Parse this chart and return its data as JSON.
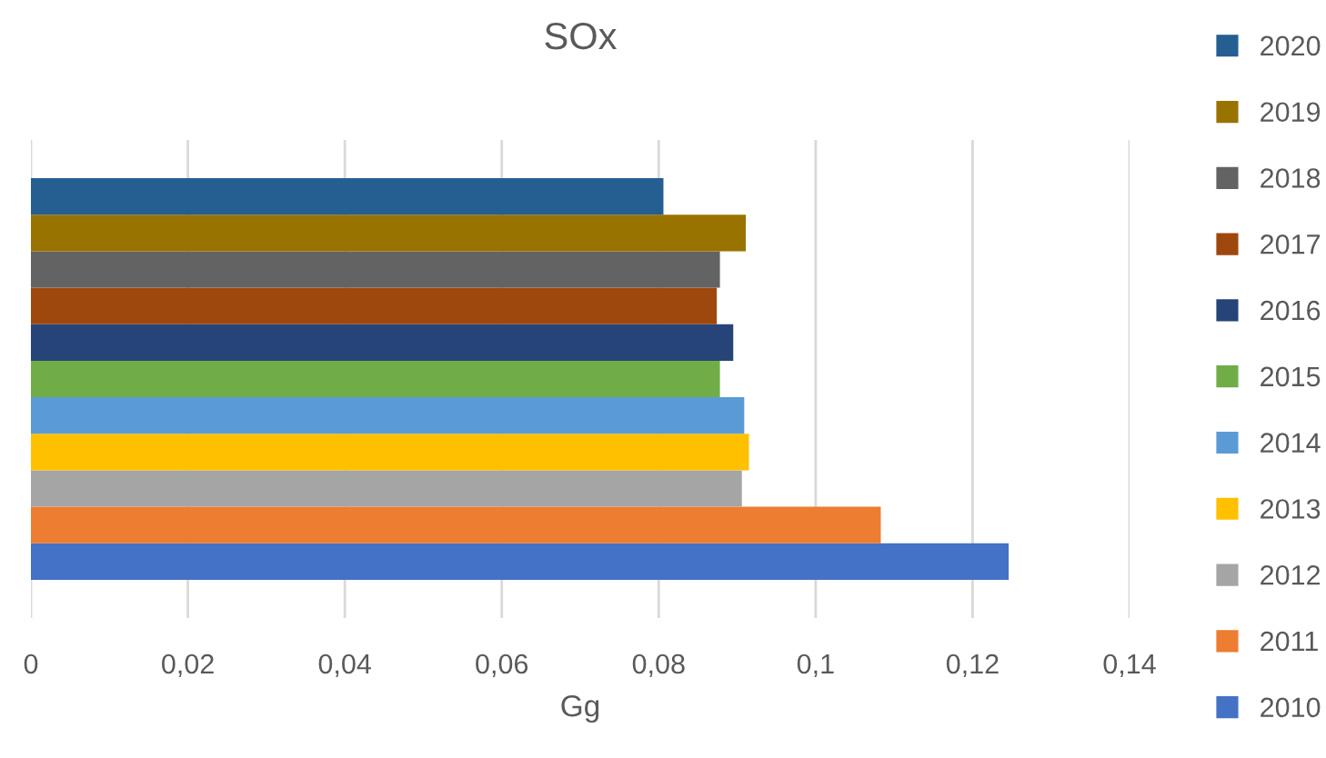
{
  "chart_data": {
    "type": "bar",
    "orientation": "horizontal",
    "title": "SOx",
    "xlabel": "Gg",
    "categories": [
      null
    ],
    "series": [
      {
        "name": "2010",
        "color": "#4472c4",
        "values": [
          0.1246
        ]
      },
      {
        "name": "2011",
        "color": "#ed7d31",
        "values": [
          0.1083
        ]
      },
      {
        "name": "2012",
        "color": "#a5a5a5",
        "values": [
          0.0906
        ]
      },
      {
        "name": "2013",
        "color": "#ffc000",
        "values": [
          0.0915
        ]
      },
      {
        "name": "2014",
        "color": "#5b9bd5",
        "values": [
          0.0909
        ]
      },
      {
        "name": "2015",
        "color": "#70ad47",
        "values": [
          0.0878
        ]
      },
      {
        "name": "2016",
        "color": "#264478",
        "values": [
          0.0895
        ]
      },
      {
        "name": "2017",
        "color": "#9e480e",
        "values": [
          0.0874
        ]
      },
      {
        "name": "2018",
        "color": "#636363",
        "values": [
          0.0878
        ]
      },
      {
        "name": "2019",
        "color": "#997300",
        "values": [
          0.0911
        ]
      },
      {
        "name": "2020",
        "color": "#255e91",
        "values": [
          0.0806
        ]
      }
    ],
    "xlim": [
      0,
      0.14
    ],
    "xticks": [
      0,
      {
        "value": 0.02,
        "label": "0,02"
      },
      {
        "value": 0.04,
        "label": "0,04"
      },
      {
        "value": 0.06,
        "label": "0,06"
      },
      {
        "value": 0.08,
        "label": "0,08"
      },
      {
        "value": 0.1,
        "label": "0,1"
      },
      {
        "value": 0.12,
        "label": "0,12"
      },
      {
        "value": 0.14,
        "label": "0,14"
      }
    ],
    "grid": "x",
    "legend": "right"
  }
}
